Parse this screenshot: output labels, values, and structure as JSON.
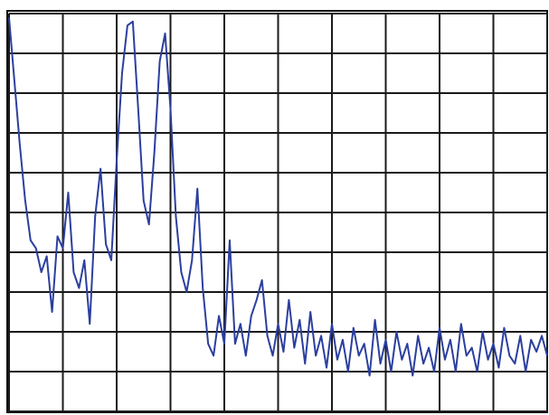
{
  "chart_data": {
    "type": "line",
    "color": "#2b3f9e",
    "grid": true,
    "xlim": [
      0,
      10
    ],
    "ylim": [
      0,
      10
    ],
    "xticks": [
      0,
      1,
      2,
      3,
      4,
      5,
      6,
      7,
      8,
      9,
      10
    ],
    "yticks": [
      0,
      1,
      2,
      3,
      4,
      5,
      6,
      7,
      8,
      9,
      10
    ],
    "x": [
      0,
      0.1,
      0.2,
      0.3,
      0.4,
      0.5,
      0.6,
      0.7,
      0.8,
      0.9,
      1,
      1.1,
      1.2,
      1.3,
      1.4,
      1.5,
      1.6,
      1.7,
      1.8,
      1.9,
      2,
      2.1,
      2.2,
      2.3,
      2.4,
      2.5,
      2.6,
      2.7,
      2.8,
      2.9,
      3,
      3.1,
      3.2,
      3.3,
      3.4,
      3.5,
      3.6,
      3.7,
      3.8,
      3.9,
      4,
      4.1,
      4.2,
      4.3,
      4.4,
      4.5,
      4.6,
      4.7,
      4.8,
      4.9,
      5,
      5.1,
      5.2,
      5.3,
      5.4,
      5.5,
      5.6,
      5.7,
      5.8,
      5.9,
      6,
      6.1,
      6.2,
      6.3,
      6.4,
      6.5,
      6.6,
      6.7,
      6.8,
      6.9,
      7,
      7.1,
      7.2,
      7.3,
      7.4,
      7.5,
      7.6,
      7.7,
      7.8,
      7.9,
      8,
      8.1,
      8.2,
      8.3,
      8.4,
      8.5,
      8.6,
      8.7,
      8.8,
      8.9,
      9,
      9.1,
      9.2,
      9.3,
      9.4,
      9.5,
      9.6,
      9.7,
      9.8,
      9.9,
      10
    ],
    "values": [
      9.9,
      8.3,
      6.7,
      5.3,
      4.3,
      4.1,
      3.5,
      3.9,
      2.5,
      4.4,
      4.1,
      5.5,
      3.5,
      3.1,
      3.8,
      2.2,
      4.9,
      6.1,
      4.2,
      3.8,
      6.3,
      8.5,
      9.7,
      9.8,
      7.6,
      5.3,
      4.7,
      6.5,
      8.8,
      9.5,
      7.6,
      4.9,
      3.5,
      3.0,
      3.8,
      5.6,
      3.1,
      1.7,
      1.4,
      2.4,
      1.7,
      4.3,
      1.7,
      2.2,
      1.4,
      2.4,
      2.8,
      3.3,
      1.9,
      1.4,
      2.2,
      1.5,
      2.8,
      1.6,
      2.3,
      1.2,
      2.5,
      1.4,
      1.9,
      1.1,
      2.2,
      1.3,
      1.8,
      1.0,
      2.1,
      1.4,
      1.7,
      0.9,
      2.3,
      1.2,
      1.8,
      1.0,
      2.0,
      1.3,
      1.7,
      0.9,
      1.9,
      1.2,
      1.6,
      1.0,
      2.1,
      1.3,
      1.8,
      1.0,
      2.2,
      1.4,
      1.6,
      1.0,
      2.0,
      1.3,
      1.7,
      1.1,
      2.1,
      1.4,
      1.2,
      1.9,
      1.0,
      1.8,
      1.5,
      1.9,
      1.4
    ]
  }
}
